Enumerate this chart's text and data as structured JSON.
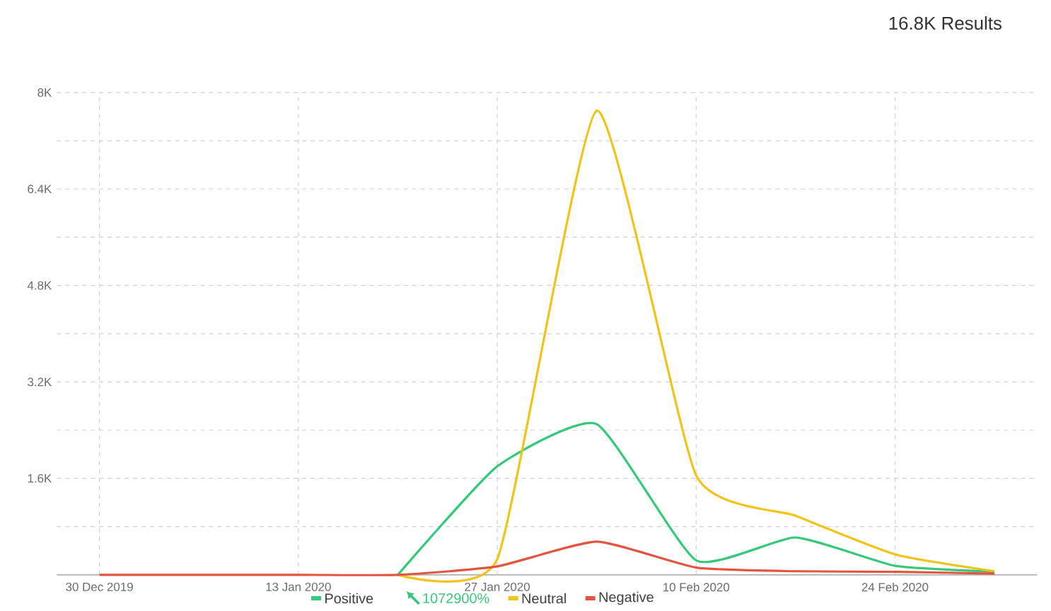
{
  "chart_data": {
    "type": "line",
    "title": "16.8K Results",
    "x": [
      "2019-12-30",
      "2020-01-06",
      "2020-01-13",
      "2020-01-20",
      "2020-01-27",
      "2020-02-03",
      "2020-02-10",
      "2020-02-17",
      "2020-02-24",
      "2020-03-02"
    ],
    "series": [
      {
        "name": "Positive",
        "color": "#34c97b",
        "values": [
          null,
          null,
          null,
          0,
          1800,
          2500,
          240,
          620,
          150,
          50
        ]
      },
      {
        "name": "Neutral",
        "color": "#f0c419",
        "values": [
          null,
          null,
          null,
          0,
          260,
          7700,
          1650,
          980,
          340,
          60
        ]
      },
      {
        "name": "Negative",
        "color": "#e4553f",
        "values": [
          0,
          0,
          0,
          0,
          140,
          550,
          120,
          60,
          50,
          20
        ]
      }
    ],
    "annotations": [
      "1072900%"
    ],
    "xlim": [
      "2019-12-27",
      "2020-03-05"
    ],
    "xticks": [
      {
        "value": "2019-12-30",
        "label": "30 Dec 2019"
      },
      {
        "value": "2020-01-13",
        "label": "13 Jan 2020"
      },
      {
        "value": "2020-01-27",
        "label": "27 Jan 2020"
      },
      {
        "value": "2020-02-10",
        "label": "10 Feb 2020"
      },
      {
        "value": "2020-02-24",
        "label": "24 Feb 2020"
      }
    ],
    "ylim": [
      0,
      8000
    ],
    "yticks": [
      {
        "value": 800,
        "label": null
      },
      {
        "value": 1600,
        "label": "1.6K"
      },
      {
        "value": 2400,
        "label": null
      },
      {
        "value": 3200,
        "label": "3.2K"
      },
      {
        "value": 4000,
        "label": null
      },
      {
        "value": 4800,
        "label": "4.8K"
      },
      {
        "value": 5600,
        "label": null
      },
      {
        "value": 6400,
        "label": "6.4K"
      },
      {
        "value": 7200,
        "label": null
      },
      {
        "value": 8000,
        "label": "8K"
      }
    ],
    "grid": true,
    "legend": "bottom"
  }
}
